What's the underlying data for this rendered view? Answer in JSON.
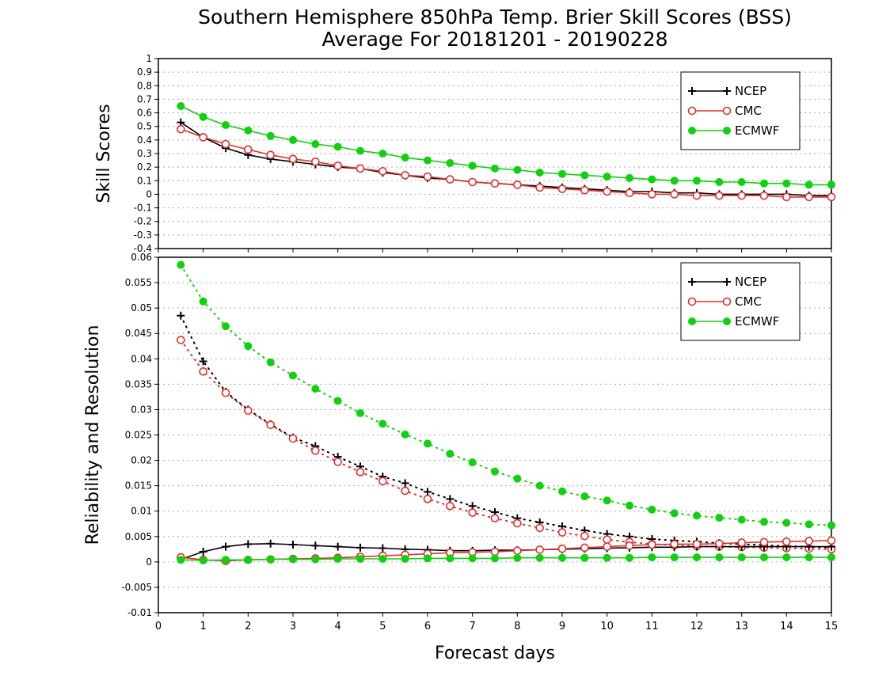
{
  "title_line1": "Southern Hemisphere 850hPa Temp. Brier Skill Scores (BSS)",
  "title_line2": "Average For 20181201 - 20190228",
  "xlabel": "Forecast days",
  "colors": {
    "NCEP": "#000000",
    "CMC": "#e03030",
    "ECMWF": "#10d010"
  },
  "chart_data": [
    {
      "type": "line",
      "ylabel": "Skill Scores",
      "xlim": [
        0,
        15
      ],
      "ylim": [
        -0.4,
        1
      ],
      "x_ticks": [
        0,
        1,
        2,
        3,
        4,
        5,
        6,
        7,
        8,
        9,
        10,
        11,
        12,
        13,
        14,
        15
      ],
      "y_ticks": [
        -0.4,
        -0.3,
        -0.2,
        -0.1,
        0,
        0.1,
        0.2,
        0.3,
        0.4,
        0.5,
        0.6,
        0.7,
        0.8,
        0.9,
        1
      ],
      "y_tick_labels": [
        "-0.4",
        "-0.3",
        "-0.2",
        "-0.1",
        "0",
        "0.1",
        "0.2",
        "0.3",
        "0.4",
        "0.5",
        "0.6",
        "0.7",
        "0.8",
        "0.9",
        "1"
      ],
      "grid": true,
      "legend_position": "top-right",
      "x": [
        0.5,
        1,
        1.5,
        2,
        2.5,
        3,
        3.5,
        4,
        4.5,
        5,
        5.5,
        6,
        6.5,
        7,
        7.5,
        8,
        8.5,
        9,
        9.5,
        10,
        10.5,
        11,
        11.5,
        12,
        12.5,
        13,
        13.5,
        14,
        14.5,
        15
      ],
      "series": [
        {
          "name": "NCEP",
          "marker": "plus",
          "style": "solid",
          "values": [
            0.53,
            0.42,
            0.34,
            0.29,
            0.26,
            0.24,
            0.22,
            0.2,
            0.19,
            0.16,
            0.14,
            0.12,
            0.11,
            0.09,
            0.08,
            0.07,
            0.06,
            0.05,
            0.04,
            0.03,
            0.02,
            0.02,
            0.01,
            0.01,
            0.0,
            0.0,
            0.0,
            0.0,
            -0.01,
            -0.01
          ]
        },
        {
          "name": "CMC",
          "marker": "open-circle",
          "style": "solid",
          "values": [
            0.48,
            0.42,
            0.37,
            0.33,
            0.29,
            0.26,
            0.24,
            0.21,
            0.19,
            0.17,
            0.14,
            0.13,
            0.11,
            0.09,
            0.08,
            0.07,
            0.05,
            0.04,
            0.03,
            0.02,
            0.01,
            0.0,
            0.0,
            -0.01,
            -0.01,
            -0.01,
            -0.01,
            -0.02,
            -0.02,
            -0.02
          ]
        },
        {
          "name": "ECMWF",
          "marker": "filled-circle",
          "style": "solid",
          "values": [
            0.65,
            0.57,
            0.51,
            0.47,
            0.43,
            0.4,
            0.37,
            0.35,
            0.32,
            0.3,
            0.27,
            0.25,
            0.23,
            0.21,
            0.19,
            0.18,
            0.16,
            0.15,
            0.14,
            0.13,
            0.12,
            0.11,
            0.1,
            0.1,
            0.09,
            0.09,
            0.08,
            0.08,
            0.07,
            0.07
          ]
        }
      ]
    },
    {
      "type": "line",
      "ylabel": "Reliability and Resolution",
      "xlim": [
        0,
        15
      ],
      "ylim": [
        -0.01,
        0.06
      ],
      "x_ticks": [
        0,
        1,
        2,
        3,
        4,
        5,
        6,
        7,
        8,
        9,
        10,
        11,
        12,
        13,
        14,
        15
      ],
      "y_ticks": [
        -0.01,
        -0.005,
        0,
        0.005,
        0.01,
        0.015,
        0.02,
        0.025,
        0.03,
        0.035,
        0.04,
        0.045,
        0.05,
        0.055,
        0.06
      ],
      "y_tick_labels": [
        "-0.01",
        "-0.005",
        "0",
        "0.005",
        "0.01",
        "0.015",
        "0.02",
        "0.025",
        "0.03",
        "0.035",
        "0.04",
        "0.045",
        "0.05",
        "0.055",
        "0.06"
      ],
      "grid": true,
      "legend_position": "top-right",
      "x": [
        0.5,
        1,
        1.5,
        2,
        2.5,
        3,
        3.5,
        4,
        4.5,
        5,
        5.5,
        6,
        6.5,
        7,
        7.5,
        8,
        8.5,
        9,
        9.5,
        10,
        10.5,
        11,
        11.5,
        12,
        12.5,
        13,
        13.5,
        14,
        14.5,
        15
      ],
      "series": [
        {
          "name": "NCEP",
          "marker": "plus",
          "style": "dotted",
          "values": [
            0.0485,
            0.0395,
            0.0335,
            0.03,
            0.0271,
            0.0245,
            0.0228,
            0.0207,
            0.0188,
            0.0168,
            0.0155,
            0.0138,
            0.0124,
            0.011,
            0.0098,
            0.0086,
            0.0078,
            0.007,
            0.0062,
            0.0055,
            0.005,
            0.0045,
            0.0042,
            0.004,
            0.0037,
            0.0035,
            0.0033,
            0.0031,
            0.003,
            0.0028
          ]
        },
        {
          "name": "CMC",
          "marker": "open-circle",
          "style": "dotted",
          "values": [
            0.0437,
            0.0375,
            0.0333,
            0.0298,
            0.027,
            0.0243,
            0.0219,
            0.0197,
            0.0177,
            0.0159,
            0.014,
            0.0124,
            0.011,
            0.0097,
            0.0086,
            0.0076,
            0.0067,
            0.0058,
            0.0051,
            0.0044,
            0.0039,
            0.0035,
            0.0033,
            0.0031,
            0.003,
            0.0029,
            0.0028,
            0.0027,
            0.0026,
            0.0025
          ]
        },
        {
          "name": "ECMWF",
          "marker": "filled-circle",
          "style": "dotted",
          "values": [
            0.0585,
            0.0513,
            0.0464,
            0.0425,
            0.0393,
            0.0367,
            0.0341,
            0.0317,
            0.0293,
            0.0272,
            0.0251,
            0.0233,
            0.0213,
            0.0196,
            0.0178,
            0.0164,
            0.015,
            0.0139,
            0.0129,
            0.0121,
            0.0111,
            0.0103,
            0.0096,
            0.0091,
            0.0087,
            0.0083,
            0.0079,
            0.0077,
            0.0074,
            0.0072
          ]
        },
        {
          "name": "NCEP",
          "marker": "plus",
          "style": "solid",
          "legend": false,
          "values": [
            0.0005,
            0.002,
            0.003,
            0.0035,
            0.0036,
            0.0034,
            0.0032,
            0.003,
            0.0028,
            0.0027,
            0.0025,
            0.0024,
            0.0022,
            0.0022,
            0.0023,
            0.0023,
            0.0024,
            0.0025,
            0.0026,
            0.0027,
            0.0028,
            0.0029,
            0.0029,
            0.003,
            0.003,
            0.003,
            0.003,
            0.003,
            0.003,
            0.003
          ]
        },
        {
          "name": "CMC",
          "marker": "open-circle",
          "style": "solid",
          "legend": false,
          "values": [
            0.0009,
            0.0004,
            0.0002,
            0.0004,
            0.0005,
            0.0006,
            0.0007,
            0.0008,
            0.001,
            0.0012,
            0.0014,
            0.0016,
            0.0018,
            0.0019,
            0.002,
            0.0022,
            0.0024,
            0.0026,
            0.0028,
            0.003,
            0.0032,
            0.0034,
            0.0035,
            0.0035,
            0.0036,
            0.0038,
            0.0039,
            0.004,
            0.0041,
            0.0042
          ]
        },
        {
          "name": "ECMWF",
          "marker": "filled-circle",
          "style": "solid",
          "legend": false,
          "values": [
            0.0004,
            0.0003,
            0.0004,
            0.0004,
            0.0005,
            0.0005,
            0.0005,
            0.0006,
            0.0006,
            0.0006,
            0.0006,
            0.0007,
            0.0007,
            0.0007,
            0.0007,
            0.0008,
            0.0008,
            0.0008,
            0.0008,
            0.0008,
            0.0008,
            0.0009,
            0.0009,
            0.0009,
            0.0009,
            0.0009,
            0.0009,
            0.0009,
            0.0009,
            0.0009
          ]
        }
      ]
    }
  ]
}
